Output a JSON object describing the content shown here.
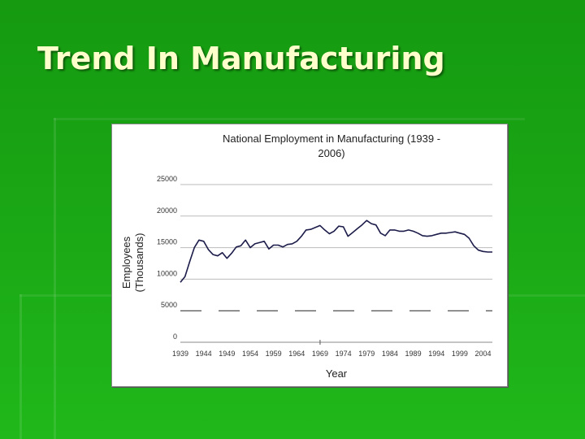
{
  "slide": {
    "title": "Trend In Manufacturing",
    "background_color": "#1aa615",
    "title_color": "#ffffcc"
  },
  "chart_data": {
    "type": "line",
    "title_line1": "National Employment in Manufacturing (1939 -",
    "title_line2": "2006)",
    "xlabel": "Year",
    "ylabel_line1": "Employees",
    "ylabel_line2": "(Thousands)",
    "ylim": [
      0,
      25000
    ],
    "yticks": [
      0,
      5000,
      10000,
      15000,
      20000,
      25000
    ],
    "xlim": [
      1939,
      2006
    ],
    "xticks": [
      1939,
      1944,
      1949,
      1954,
      1959,
      1964,
      1969,
      1974,
      1979,
      1984,
      1989,
      1994,
      1999,
      2004
    ],
    "grid": "horizontal",
    "line_color": "#1c1c4a",
    "series": [
      {
        "x": [
          1939,
          1940,
          1941,
          1942,
          1943,
          1944,
          1945,
          1946,
          1947,
          1948,
          1949,
          1950,
          1951,
          1952,
          1953,
          1954,
          1955,
          1956,
          1957,
          1958,
          1959,
          1960,
          1961,
          1962,
          1963,
          1964,
          1965,
          1966,
          1967,
          1968,
          1969,
          1970,
          1971,
          1972,
          1973,
          1974,
          1975,
          1976,
          1977,
          1978,
          1979,
          1980,
          1981,
          1982,
          1983,
          1984,
          1985,
          1986,
          1987,
          1988,
          1989,
          1990,
          1991,
          1992,
          1993,
          1994,
          1995,
          1996,
          1997,
          1998,
          1999,
          2000,
          2001,
          2002,
          2003,
          2004,
          2005,
          2006
        ],
        "values": [
          9500,
          10400,
          12800,
          15000,
          16200,
          16000,
          14700,
          13900,
          13700,
          14200,
          13300,
          14100,
          15100,
          15300,
          16200,
          15000,
          15600,
          15800,
          16000,
          14800,
          15400,
          15400,
          15100,
          15500,
          15600,
          16000,
          16800,
          17800,
          17900,
          18200,
          18500,
          17800,
          17200,
          17600,
          18400,
          18300,
          16800,
          17400,
          18000,
          18600,
          19300,
          18800,
          18600,
          17300,
          16900,
          17800,
          17800,
          17600,
          17600,
          17800,
          17600,
          17300,
          16900,
          16800,
          16900,
          17100,
          17300,
          17300,
          17400,
          17500,
          17300,
          17100,
          16500,
          15300,
          14600,
          14400,
          14300,
          14300
        ]
      }
    ],
    "reference_line": {
      "value": 5000,
      "style": "dashed"
    }
  }
}
